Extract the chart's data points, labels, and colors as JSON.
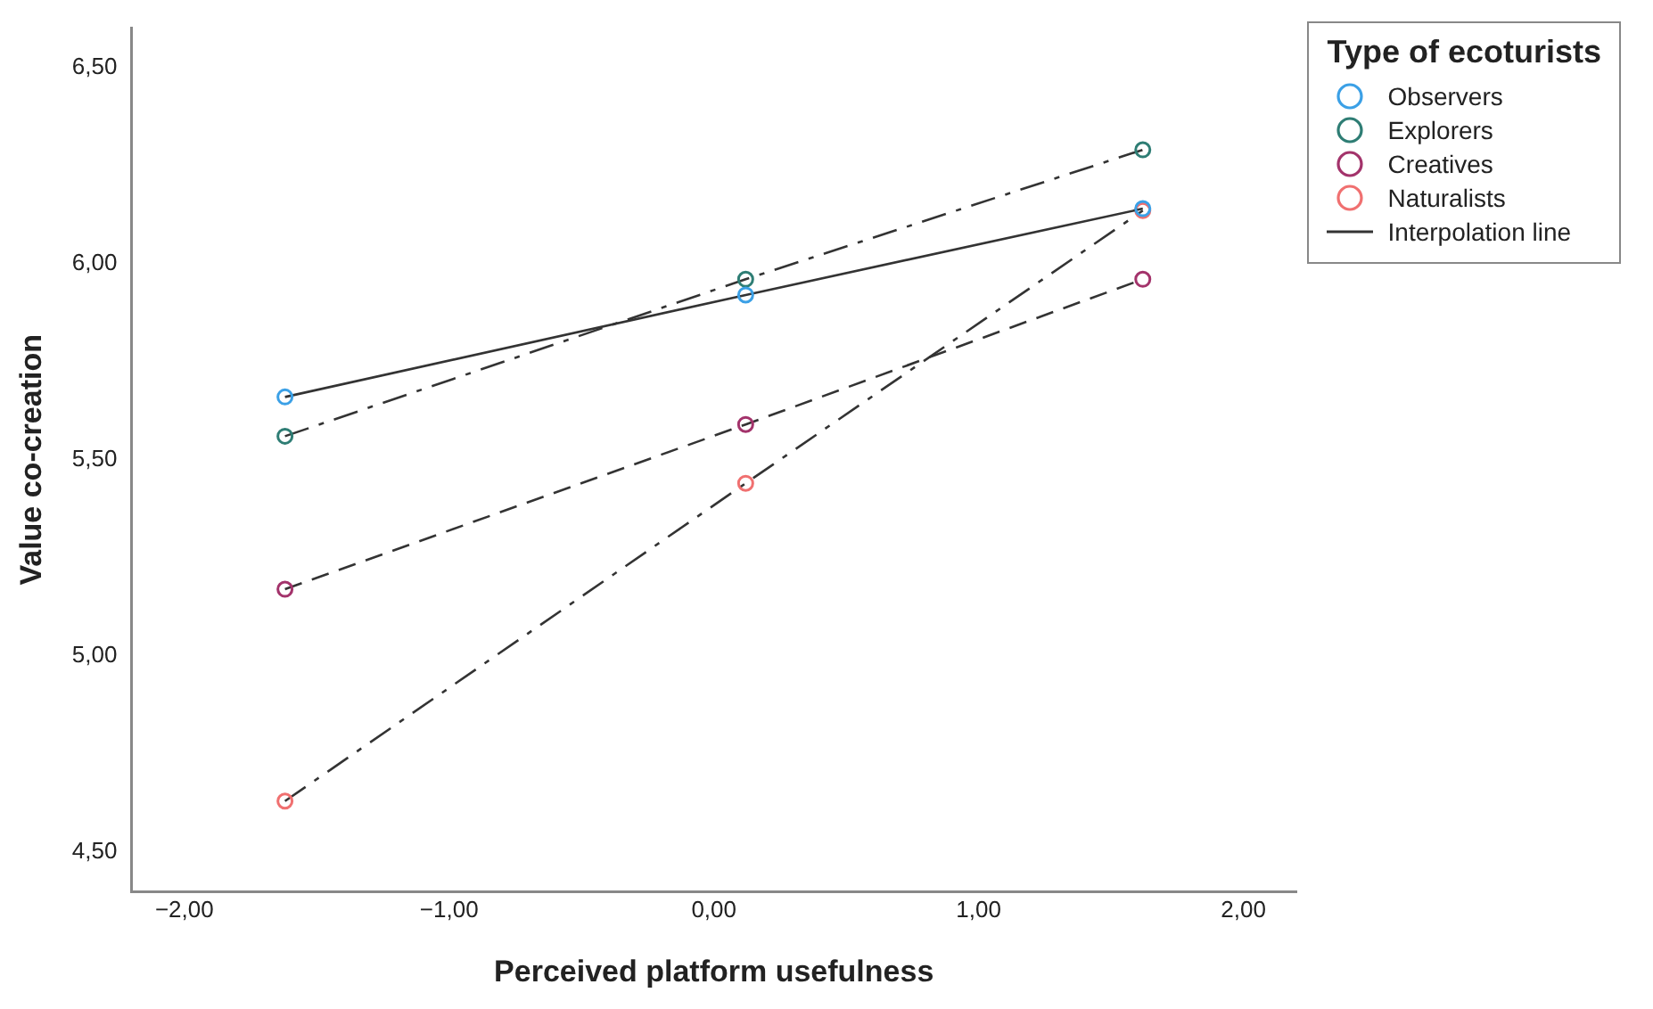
{
  "chart_data": {
    "type": "line",
    "xlabel": "Perceived platform usefulness",
    "ylabel": "Value co-creation",
    "legend_title": "Type of ecoturists",
    "legend": "top right",
    "marker": "circle",
    "x": [
      -1.62,
      0.12,
      1.62
    ],
    "series": [
      {
        "name": "Observers",
        "color": "#3ba0e6",
        "line_style": "solid",
        "values": [
          5.66,
          5.92,
          6.14
        ]
      },
      {
        "name": "Explorers",
        "color": "#2e7d74",
        "line_style": "dashdot",
        "values": [
          5.56,
          5.96,
          6.29
        ]
      },
      {
        "name": "Creatives",
        "color": "#a3336b",
        "line_style": "dashed",
        "values": [
          5.17,
          5.59,
          5.96
        ]
      },
      {
        "name": "Naturalists",
        "color": "#f07070",
        "line_style": "dashdot",
        "values": [
          4.63,
          5.44,
          6.135
        ]
      }
    ],
    "annotations": [
      "Interpolation line"
    ],
    "xlim": [
      -2.2,
      2.2
    ],
    "xticks": [
      {
        "value": -2,
        "label": "−2,00"
      },
      {
        "value": -1,
        "label": "−1,00"
      },
      {
        "value": 0,
        "label": "0,00"
      },
      {
        "value": 1,
        "label": "1,00"
      },
      {
        "value": 2,
        "label": "2,00"
      }
    ],
    "ylim": [
      4.4,
      6.6
    ],
    "yticks": [
      {
        "value": 4.5,
        "label": "4,50"
      },
      {
        "value": 5,
        "label": "5,00"
      },
      {
        "value": 5.5,
        "label": "5,50"
      },
      {
        "value": 6,
        "label": "6,00"
      },
      {
        "value": 6.5,
        "label": "6,50"
      }
    ],
    "grid": false
  }
}
